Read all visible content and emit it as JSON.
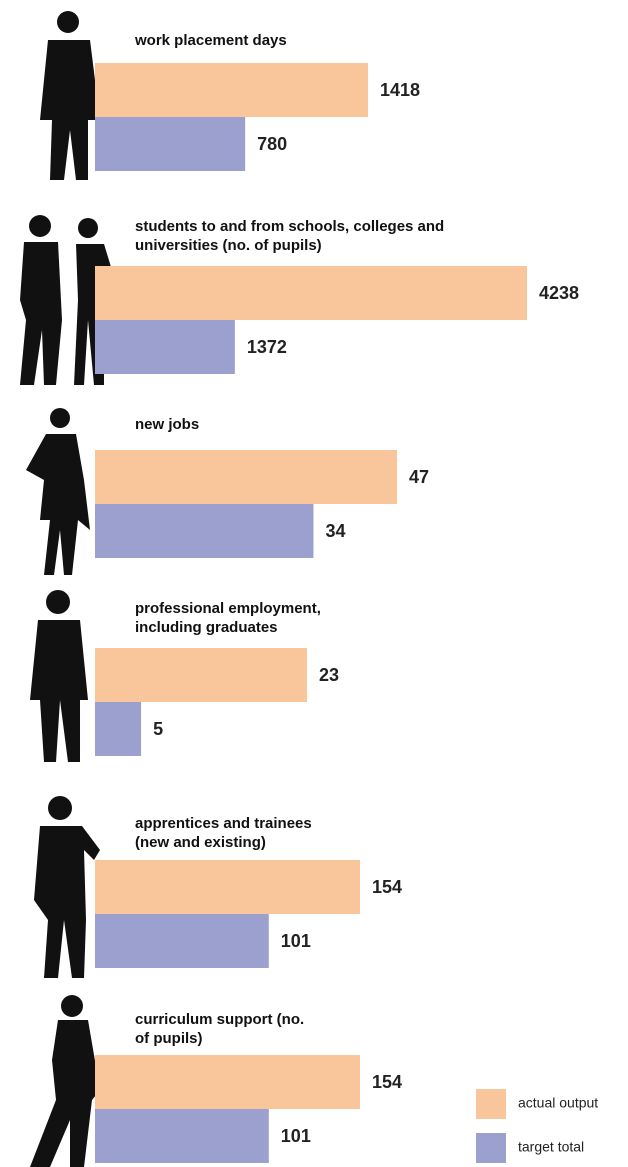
{
  "chart_data": {
    "type": "bar",
    "categories": [
      "work placement days",
      "students to and from schools, colleges and universities (no. of pupils)",
      "new jobs",
      "professional employment, including graduates",
      "apprentices and trainees (new and existing)",
      "curriculum support (no. of pupils)"
    ],
    "series": [
      {
        "name": "actual output",
        "color": "#f9c59b",
        "values": [
          1418,
          4238,
          47,
          23,
          154,
          154
        ]
      },
      {
        "name": "target total",
        "color": "#9ca0cf",
        "values": [
          780,
          1372,
          34,
          5,
          101,
          101
        ]
      }
    ],
    "legend": "bottom-right"
  }
}
